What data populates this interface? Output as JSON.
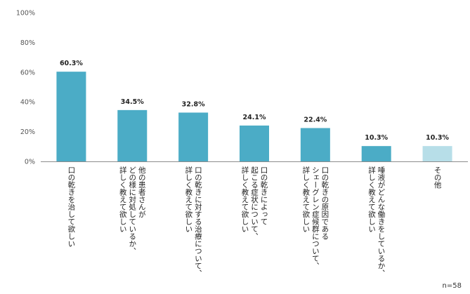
{
  "chart_data": {
    "type": "bar",
    "categories": [
      [
        "口の乾きを治して欲しい"
      ],
      [
        "他の患者さんが",
        "どの様に対処しているか、",
        "詳しく教えて欲しい"
      ],
      [
        "口の乾きに対する治療について、",
        "詳しく教えて欲しい"
      ],
      [
        "口の乾きによって",
        "起こる症状について、",
        "詳しく教えて欲しい"
      ],
      [
        "口の乾きの原因である",
        "シェーグレン症候群について、",
        "詳しく教えて欲しい"
      ],
      [
        "唾液がどんな働きをしているか、",
        "詳しく教えて欲しい"
      ],
      [
        "その他"
      ]
    ],
    "values": [
      60.3,
      34.5,
      32.8,
      24.1,
      22.4,
      10.3,
      10.3
    ],
    "data_labels": [
      "60.3%",
      "34.5%",
      "32.8%",
      "24.1%",
      "22.4%",
      "10.3%",
      "10.3%"
    ],
    "bar_colors": [
      "#4bacc6",
      "#4bacc6",
      "#4bacc6",
      "#4bacc6",
      "#4bacc6",
      "#4bacc6",
      "#b7dee8"
    ],
    "y_ticks": [
      0,
      20,
      40,
      60,
      80,
      100
    ],
    "y_tick_labels": [
      "0%",
      "20%",
      "40%",
      "60%",
      "80%",
      "100%"
    ],
    "ylim": [
      0,
      100
    ],
    "grid": false,
    "title": "",
    "xlabel": "",
    "ylabel": ""
  },
  "note": "n=58"
}
